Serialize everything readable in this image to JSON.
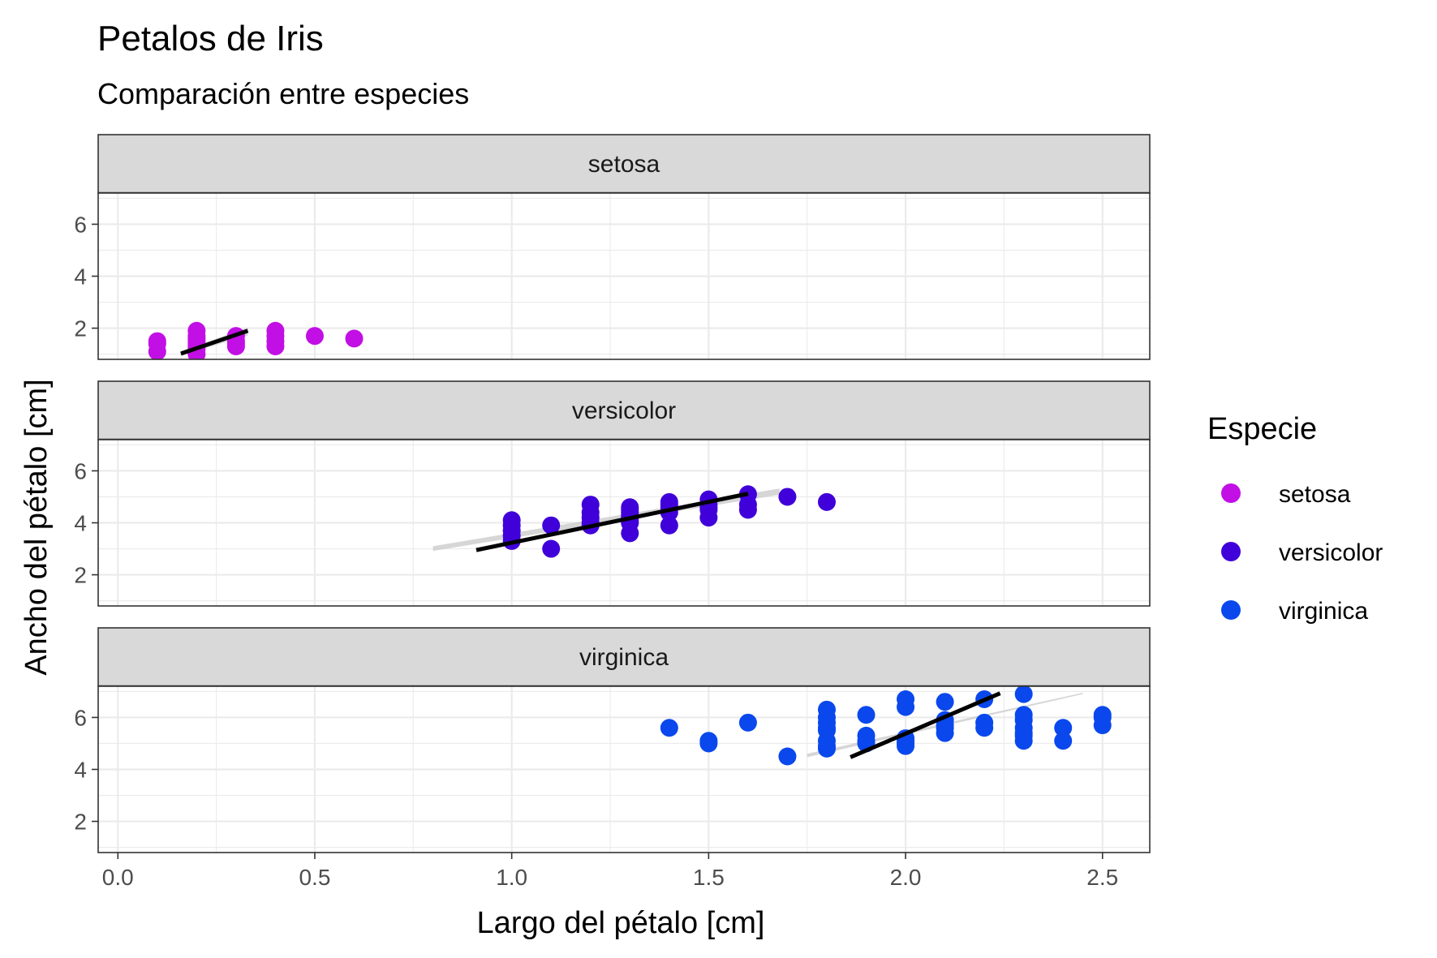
{
  "chart_data": {
    "type": "scatter",
    "title": "Petalos de Iris",
    "subtitle": "Comparación entre especies",
    "xlabel": "Largo del pétalo [cm]",
    "ylabel": "Ancho del pétalo [cm]",
    "xlim": [
      -0.05,
      2.62
    ],
    "ylim": [
      0.8,
      7.2
    ],
    "x_ticks": [
      "0.0",
      "0.5",
      "1.0",
      "1.5",
      "2.0",
      "2.5"
    ],
    "y_ticks": [
      "2",
      "4",
      "6"
    ],
    "grid": true,
    "legend": {
      "title": "Especie",
      "placement": "right"
    },
    "facets": [
      {
        "name": "setosa",
        "color": "#C20FE5",
        "points": [
          [
            0.1,
            1.1
          ],
          [
            0.1,
            1.4
          ],
          [
            0.1,
            1.5
          ],
          [
            0.2,
            1.0
          ],
          [
            0.2,
            1.2
          ],
          [
            0.2,
            1.3
          ],
          [
            0.2,
            1.4
          ],
          [
            0.2,
            1.5
          ],
          [
            0.2,
            1.6
          ],
          [
            0.2,
            1.7
          ],
          [
            0.2,
            1.9
          ],
          [
            0.3,
            1.3
          ],
          [
            0.3,
            1.4
          ],
          [
            0.3,
            1.5
          ],
          [
            0.3,
            1.7
          ],
          [
            0.4,
            1.3
          ],
          [
            0.4,
            1.5
          ],
          [
            0.4,
            1.7
          ],
          [
            0.4,
            1.9
          ],
          [
            0.5,
            1.7
          ],
          [
            0.6,
            1.6
          ]
        ],
        "fit": {
          "x0": 0.16,
          "y0": 1.02,
          "x1": 0.33,
          "y1": 1.9
        },
        "band": {
          "x0": 0.16,
          "x1": 0.33,
          "lo0": 0.95,
          "hi0": 1.12,
          "lo1": 1.72,
          "hi1": 2.02
        }
      },
      {
        "name": "versicolor",
        "color": "#4000D9",
        "points": [
          [
            1.0,
            3.3
          ],
          [
            1.0,
            3.5
          ],
          [
            1.0,
            3.7
          ],
          [
            1.0,
            3.9
          ],
          [
            1.0,
            4.1
          ],
          [
            1.1,
            3.0
          ],
          [
            1.1,
            3.9
          ],
          [
            1.2,
            3.9
          ],
          [
            1.2,
            4.0
          ],
          [
            1.2,
            4.2
          ],
          [
            1.2,
            4.4
          ],
          [
            1.2,
            4.7
          ],
          [
            1.3,
            3.6
          ],
          [
            1.3,
            4.0
          ],
          [
            1.3,
            4.1
          ],
          [
            1.3,
            4.2
          ],
          [
            1.3,
            4.3
          ],
          [
            1.3,
            4.4
          ],
          [
            1.3,
            4.5
          ],
          [
            1.3,
            4.6
          ],
          [
            1.4,
            3.9
          ],
          [
            1.4,
            4.4
          ],
          [
            1.4,
            4.6
          ],
          [
            1.4,
            4.7
          ],
          [
            1.4,
            4.8
          ],
          [
            1.5,
            4.2
          ],
          [
            1.5,
            4.5
          ],
          [
            1.5,
            4.6
          ],
          [
            1.5,
            4.7
          ],
          [
            1.5,
            4.9
          ],
          [
            1.6,
            4.5
          ],
          [
            1.6,
            4.7
          ],
          [
            1.6,
            5.1
          ],
          [
            1.7,
            5.0
          ],
          [
            1.8,
            4.8
          ]
        ],
        "fit": {
          "x0": 0.91,
          "y0": 2.95,
          "x1": 1.6,
          "y1": 5.12
        },
        "band": {
          "x0": 0.8,
          "x1": 1.68,
          "lo0": 2.92,
          "hi0": 3.1,
          "lo1": 5.08,
          "hi1": 5.32
        }
      },
      {
        "name": "virginica",
        "color": "#0A48EE",
        "points": [
          [
            1.4,
            5.6
          ],
          [
            1.5,
            5.0
          ],
          [
            1.5,
            5.1
          ],
          [
            1.6,
            5.8
          ],
          [
            1.7,
            4.5
          ],
          [
            1.8,
            4.8
          ],
          [
            1.8,
            4.9
          ],
          [
            1.8,
            5.1
          ],
          [
            1.8,
            5.5
          ],
          [
            1.8,
            5.6
          ],
          [
            1.8,
            5.8
          ],
          [
            1.8,
            6.0
          ],
          [
            1.8,
            6.3
          ],
          [
            1.9,
            5.0
          ],
          [
            1.9,
            5.1
          ],
          [
            1.9,
            5.3
          ],
          [
            1.9,
            6.1
          ],
          [
            2.0,
            4.9
          ],
          [
            2.0,
            5.0
          ],
          [
            2.0,
            5.1
          ],
          [
            2.0,
            5.2
          ],
          [
            2.0,
            6.4
          ],
          [
            2.0,
            6.7
          ],
          [
            2.1,
            5.4
          ],
          [
            2.1,
            5.6
          ],
          [
            2.1,
            5.7
          ],
          [
            2.1,
            5.9
          ],
          [
            2.1,
            6.6
          ],
          [
            2.2,
            5.6
          ],
          [
            2.2,
            5.8
          ],
          [
            2.2,
            6.7
          ],
          [
            2.3,
            5.1
          ],
          [
            2.3,
            5.3
          ],
          [
            2.3,
            5.4
          ],
          [
            2.3,
            5.6
          ],
          [
            2.3,
            5.9
          ],
          [
            2.3,
            6.1
          ],
          [
            2.3,
            6.9
          ],
          [
            2.4,
            5.1
          ],
          [
            2.4,
            5.6
          ],
          [
            2.5,
            5.7
          ],
          [
            2.5,
            6.0
          ],
          [
            2.5,
            6.1
          ]
        ],
        "fit": {
          "x0": 1.86,
          "y0": 4.47,
          "x1": 2.24,
          "y1": 6.93
        },
        "band": {
          "x0": 1.75,
          "x1": 2.45,
          "lo0": 4.47,
          "hi0": 4.6,
          "lo1": 6.9,
          "hi1": 6.95
        }
      }
    ]
  }
}
